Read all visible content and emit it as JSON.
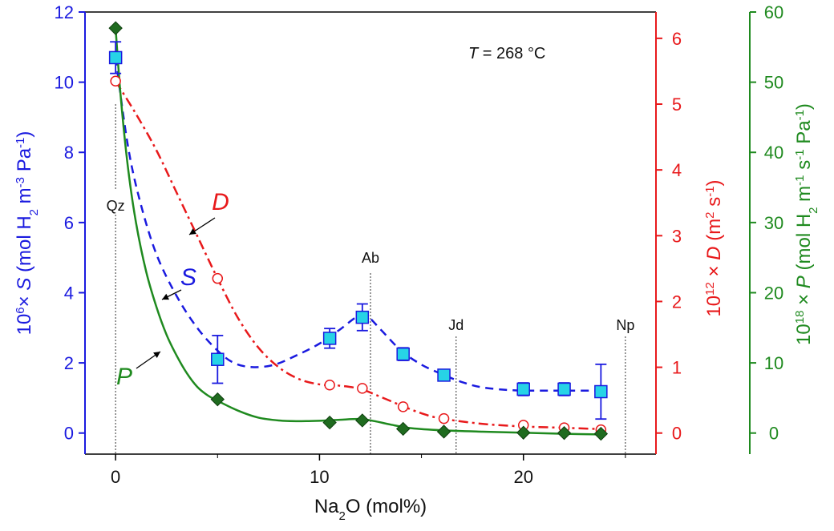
{
  "chart_data": {
    "type": "line",
    "annotation": {
      "prefix": "T",
      "suffix": " = 268 °C"
    },
    "xaxis": {
      "label_base": "Na",
      "label_sub": "2",
      "label_rest": "O (mol%)",
      "lim": [
        -1.5,
        26.5
      ],
      "ticks": [
        0,
        10,
        20
      ]
    },
    "yaxis_left": {
      "color": "#1a1adf",
      "label_parts": [
        "10",
        "6",
        "× ",
        "S",
        " (mol H",
        "2",
        " m",
        "-3",
        " Pa",
        "-1",
        ")"
      ],
      "lim": [
        -0.6,
        12
      ],
      "ticks": [
        0,
        2,
        4,
        6,
        8,
        10,
        12
      ]
    },
    "yaxis_right1": {
      "color": "#e8191b",
      "label_parts": [
        "10",
        "12",
        " × ",
        "D",
        " (m",
        "2",
        " s",
        "-1",
        ")"
      ],
      "lim": [
        -0.32,
        6.4
      ],
      "ticks": [
        0,
        1,
        2,
        3,
        4,
        5,
        6
      ]
    },
    "yaxis_right2": {
      "color": "#1f8a1f",
      "label_parts": [
        "10",
        "18",
        " × ",
        "P",
        " (mol H",
        "2",
        " m",
        "-1",
        " s",
        "-1",
        " Pa",
        "-1",
        ")"
      ],
      "lim": [
        -3,
        60
      ],
      "ticks": [
        0,
        10,
        20,
        30,
        40,
        50,
        60
      ]
    },
    "series": [
      {
        "name": "S",
        "axis": "left",
        "color": "#1a1adf",
        "marker": "square",
        "marker_fill": "#27d3e6",
        "x": [
          0,
          5,
          10.5,
          12.1,
          14.1,
          16.1,
          20,
          22,
          23.8
        ],
        "y": [
          10.7,
          2.1,
          2.7,
          3.3,
          2.25,
          1.65,
          1.25,
          1.25,
          1.18
        ],
        "err": [
          0.45,
          0.68,
          0.28,
          0.38,
          0.18,
          0.14,
          0.18,
          0.18,
          0.78
        ],
        "curve_x": [
          0,
          0.6,
          1.2,
          2,
          3,
          4,
          5,
          5.8,
          6.7,
          7.8,
          9,
          10,
          11,
          11.8,
          12.3,
          13,
          14,
          15,
          16,
          17,
          18,
          19.5,
          21,
          22.5,
          24
        ],
        "curve_y": [
          10.7,
          8.2,
          6.6,
          5.1,
          3.9,
          3.0,
          2.35,
          2.0,
          1.88,
          1.95,
          2.25,
          2.55,
          2.95,
          3.3,
          3.35,
          2.95,
          2.35,
          1.95,
          1.68,
          1.45,
          1.3,
          1.22,
          1.21,
          1.21,
          1.21
        ]
      },
      {
        "name": "D",
        "axis": "right1",
        "color": "#e8191b",
        "marker": "circle",
        "marker_fill": "#ffffff",
        "x": [
          0,
          5,
          10.5,
          12.1,
          14.1,
          16.1,
          20,
          22,
          23.8
        ],
        "y": [
          5.35,
          2.35,
          0.73,
          0.68,
          0.4,
          0.22,
          0.12,
          0.08,
          0.05
        ],
        "curve_x": [
          0,
          1,
          2,
          3,
          4,
          5,
          6,
          7,
          8,
          9,
          10,
          11,
          12,
          13,
          14,
          15,
          16,
          18,
          20,
          22,
          23.8
        ],
        "curve_y": [
          5.35,
          4.85,
          4.3,
          3.65,
          3.0,
          2.35,
          1.75,
          1.3,
          1.0,
          0.82,
          0.74,
          0.72,
          0.67,
          0.55,
          0.42,
          0.3,
          0.22,
          0.14,
          0.1,
          0.08,
          0.06
        ]
      },
      {
        "name": "P",
        "axis": "right2",
        "color": "#1f8a1f",
        "marker": "diamond",
        "marker_fill": "#1f6b1f",
        "x": [
          0,
          5,
          10.5,
          12.1,
          14.1,
          16.1,
          20,
          22,
          23.8
        ],
        "y": [
          57.7,
          4.8,
          1.5,
          1.8,
          0.6,
          0.2,
          0.05,
          0.0,
          -0.1
        ],
        "curve_x": [
          0,
          0.25,
          0.6,
          1,
          1.5,
          2,
          2.5,
          3,
          3.5,
          4,
          4.5,
          5,
          6,
          7,
          8,
          9,
          10,
          11,
          12,
          12.7,
          13.5,
          14.5,
          16,
          18,
          20,
          22,
          24
        ],
        "curve_y": [
          57.7,
          48,
          38,
          30,
          23,
          18,
          14,
          11,
          8.5,
          6.6,
          5.4,
          4.6,
          3.2,
          2.2,
          1.8,
          1.7,
          1.75,
          1.9,
          2.0,
          1.7,
          1.2,
          0.7,
          0.4,
          0.2,
          0.05,
          -0.1,
          -0.2
        ]
      }
    ],
    "reference_lines": [
      {
        "label": "Qz",
        "x": 0
      },
      {
        "label": "Ab",
        "x": 12.5
      },
      {
        "label": "Jd",
        "x": 16.7
      },
      {
        "label": "Np",
        "x": 25
      }
    ],
    "series_labels": [
      "D",
      "S",
      "P"
    ]
  }
}
